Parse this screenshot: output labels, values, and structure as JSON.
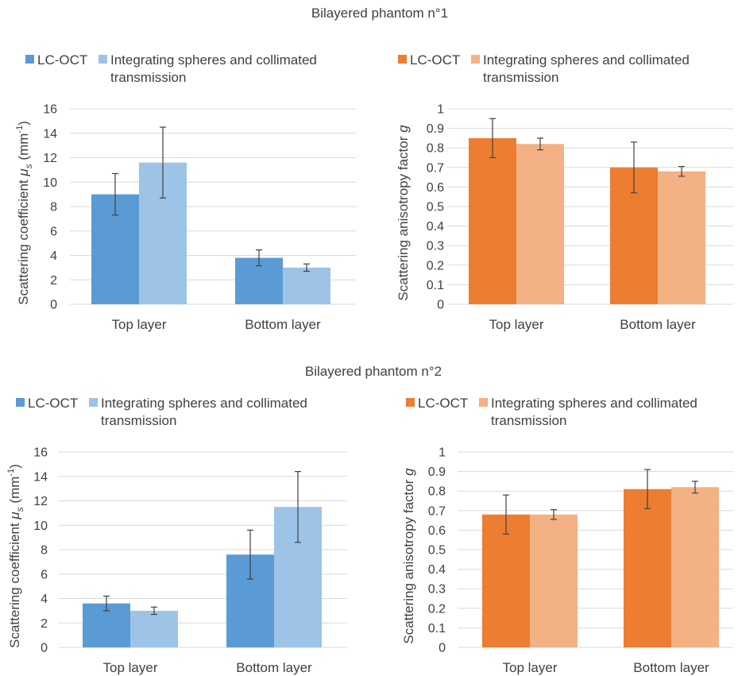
{
  "phantom_titles": [
    "Bilayered phantom n°1",
    "Bilayered phantom n°2"
  ],
  "colors": {
    "scat_lcoct": "#5b9bd5",
    "scat_ref": "#9dc3e6",
    "g_lcoct": "#ed7d31",
    "g_ref": "#f4b183",
    "grid": "#d9d9d9",
    "text": "#404040",
    "errorbar": "#404040"
  },
  "legend": {
    "lcoct": "LC-OCT",
    "ref_line1": "Integrating spheres and collimated",
    "ref_line2": "transmission"
  },
  "chart_data": [
    {
      "type": "bar",
      "phantom": "Bilayered phantom n°1",
      "categories": [
        "Top layer",
        "Bottom layer"
      ],
      "ylabel_main": "Scattering coefficient ",
      "ylabel_mu": "μ",
      "ylabel_sub": "s",
      "ylabel_unit_open": " (mm",
      "ylabel_unit_sup": "-1",
      "ylabel_unit_close": ")",
      "ylim": [
        0,
        16
      ],
      "yticks": [
        "0",
        "2",
        "4",
        "6",
        "8",
        "10",
        "12",
        "14",
        "16"
      ],
      "grid": true,
      "legend_position": "top",
      "series": [
        {
          "name": "LC-OCT",
          "values": [
            9.0,
            3.8
          ],
          "errors": [
            1.7,
            0.65
          ]
        },
        {
          "name": "Integrating spheres and collimated transmission",
          "values": [
            11.6,
            3.0
          ],
          "errors": [
            2.9,
            0.3
          ]
        }
      ]
    },
    {
      "type": "bar",
      "phantom": "Bilayered phantom n°1",
      "categories": [
        "Top layer",
        "Bottom layer"
      ],
      "ylabel_main": "Scattering anisotropy factor ",
      "ylabel_var": "g",
      "ylim": [
        0,
        1
      ],
      "yticks": [
        "0",
        "0.1",
        "0.2",
        "0.3",
        "0.4",
        "0.5",
        "0.6",
        "0.7",
        "0.8",
        "0.9",
        "1"
      ],
      "grid": true,
      "legend_position": "top",
      "series": [
        {
          "name": "LC-OCT",
          "values": [
            0.85,
            0.7
          ],
          "errors": [
            0.1,
            0.13
          ]
        },
        {
          "name": "Integrating spheres and collimated transmission",
          "values": [
            0.82,
            0.68
          ],
          "errors": [
            0.03,
            0.025
          ]
        }
      ]
    },
    {
      "type": "bar",
      "phantom": "Bilayered phantom n°2",
      "categories": [
        "Top layer",
        "Bottom layer"
      ],
      "ylabel_main": "Scattering coefficient ",
      "ylabel_mu": "μ",
      "ylabel_sub": "s",
      "ylabel_unit_open": " (mm",
      "ylabel_unit_sup": "-1",
      "ylabel_unit_close": ")",
      "ylim": [
        0,
        16
      ],
      "yticks": [
        "0",
        "2",
        "4",
        "6",
        "8",
        "10",
        "12",
        "14",
        "16"
      ],
      "grid": true,
      "legend_position": "top",
      "series": [
        {
          "name": "LC-OCT",
          "values": [
            3.6,
            7.6
          ],
          "errors": [
            0.6,
            2.0
          ]
        },
        {
          "name": "Integrating spheres and collimated transmission",
          "values": [
            3.0,
            11.5
          ],
          "errors": [
            0.3,
            2.9
          ]
        }
      ]
    },
    {
      "type": "bar",
      "phantom": "Bilayered phantom n°2",
      "categories": [
        "Top layer",
        "Bottom layer"
      ],
      "ylabel_main": "Scattering anisotropy factor ",
      "ylabel_var": "g",
      "ylim": [
        0,
        1
      ],
      "yticks": [
        "0",
        "0.1",
        "0.2",
        "0.3",
        "0.4",
        "0.5",
        "0.6",
        "0.7",
        "0.8",
        "0.9",
        "1"
      ],
      "grid": true,
      "legend_position": "top",
      "series": [
        {
          "name": "LC-OCT",
          "values": [
            0.68,
            0.81
          ],
          "errors": [
            0.1,
            0.1
          ]
        },
        {
          "name": "Integrating spheres and collimated transmission",
          "values": [
            0.68,
            0.82
          ],
          "errors": [
            0.025,
            0.03
          ]
        }
      ]
    }
  ]
}
